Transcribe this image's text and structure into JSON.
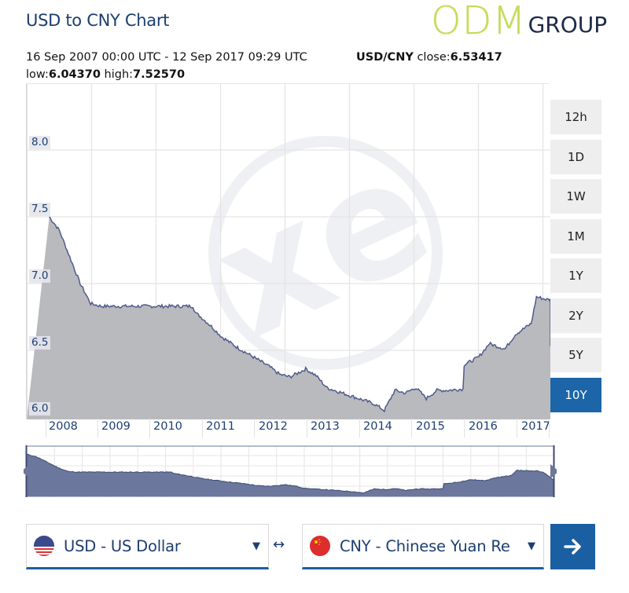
{
  "header": {
    "title": "USD to CNY Chart",
    "logo": {
      "primary": "ODM",
      "secondary": "GROUP",
      "primary_color": "#c4dd5a",
      "secondary_color": "#1d2b4a"
    }
  },
  "info": {
    "range": "16 Sep 2007 00:00 UTC - 12 Sep 2017 09:29 UTC",
    "pair": "USD/CNY",
    "close_label": "close:",
    "close_value": "6.53417",
    "low_label": "low:",
    "low_value": "6.04370",
    "high_label": "high:",
    "high_value": "7.52570"
  },
  "periods": [
    {
      "label": "12h",
      "active": false
    },
    {
      "label": "1D",
      "active": false
    },
    {
      "label": "1W",
      "active": false
    },
    {
      "label": "1M",
      "active": false
    },
    {
      "label": "1Y",
      "active": false
    },
    {
      "label": "2Y",
      "active": false
    },
    {
      "label": "5Y",
      "active": false
    },
    {
      "label": "10Y",
      "active": true
    }
  ],
  "converter": {
    "from": {
      "label": "USD - US Dollar",
      "flag": "us-flag-icon"
    },
    "to": {
      "label": "CNY - Chinese Yuan Re",
      "flag": "cn-flag-icon"
    },
    "swap_icon": "↔",
    "caret_icon": "▼",
    "go_icon": "arrow-right-icon"
  },
  "colors": {
    "accent": "#1b65a8",
    "line": "#4f5b8a",
    "area": "#b7b8bc",
    "navigator_area": "#6b779c",
    "text_blue": "#1c3e70"
  },
  "chart_data": {
    "type": "area",
    "title": "USD to CNY Chart",
    "xlabel": "",
    "ylabel": "",
    "ylim": [
      5.95,
      8.5
    ],
    "yticks": [
      "8.0",
      "7.5",
      "7.0",
      "6.5",
      "6.0"
    ],
    "xticks": [
      "2008",
      "2009",
      "2010",
      "2011",
      "2012",
      "2013",
      "2014",
      "2015",
      "2016",
      "2017"
    ],
    "grid": true,
    "legend": "none",
    "series": [
      {
        "name": "USD/CNY",
        "x": [
          2007.71,
          2007.9,
          2008.1,
          2008.3,
          2008.5,
          2008.7,
          2009.0,
          2009.5,
          2010.0,
          2010.45,
          2010.5,
          2010.6,
          2010.8,
          2011.0,
          2011.3,
          2011.6,
          2011.9,
          2012.1,
          2012.3,
          2012.6,
          2012.8,
          2013.0,
          2013.3,
          2013.6,
          2013.9,
          2014.1,
          2014.3,
          2014.5,
          2014.7,
          2014.9,
          2015.1,
          2015.3,
          2015.6,
          2015.62,
          2015.9,
          2016.1,
          2016.4,
          2016.6,
          2016.9,
          2017.0,
          2017.2,
          2017.4,
          2017.55,
          2017.7
        ],
        "values": [
          7.5,
          7.4,
          7.2,
          7.0,
          6.85,
          6.83,
          6.83,
          6.83,
          6.83,
          6.83,
          6.78,
          6.75,
          6.68,
          6.6,
          6.52,
          6.45,
          6.38,
          6.32,
          6.3,
          6.36,
          6.31,
          6.22,
          6.18,
          6.14,
          6.1,
          6.05,
          6.2,
          6.18,
          6.22,
          6.14,
          6.2,
          6.2,
          6.21,
          6.39,
          6.45,
          6.55,
          6.51,
          6.62,
          6.7,
          6.9,
          6.88,
          6.88,
          6.78,
          6.53
        ]
      }
    ],
    "summary": {
      "close": 6.53417,
      "low": 6.0437,
      "high": 7.5257,
      "start": "16 Sep 2007",
      "end": "12 Sep 2017"
    }
  }
}
